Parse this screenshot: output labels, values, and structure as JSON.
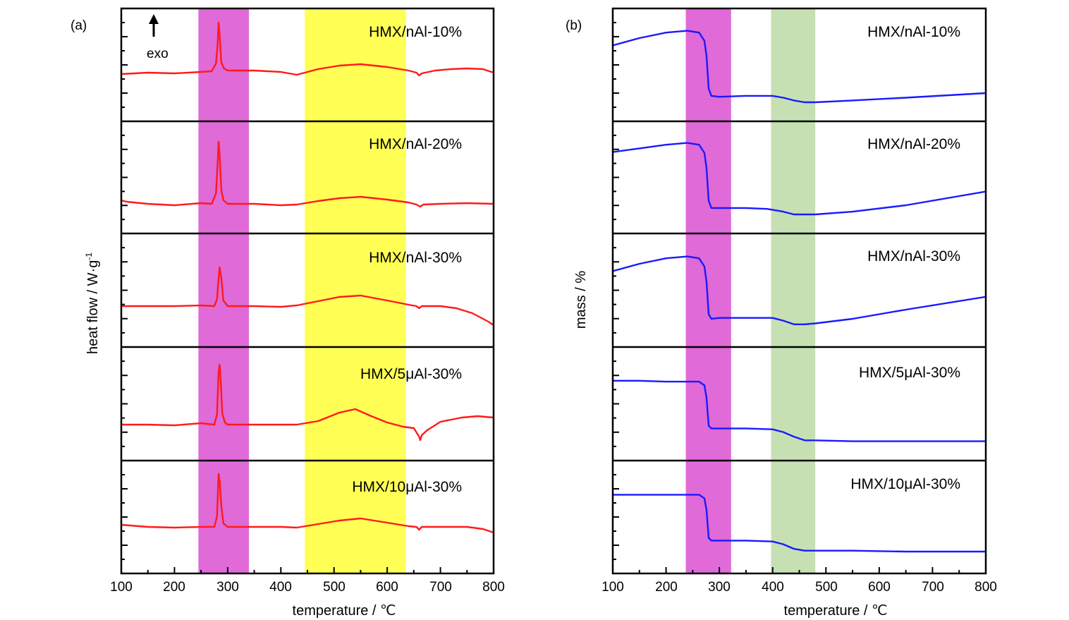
{
  "chart_data": [
    {
      "panel": "(a)",
      "type": "line",
      "stacked": true,
      "xlabel": "temperature / ℃",
      "ylabel": "heat flow / W·g",
      "ylabel_sup": "-1",
      "xlim": [
        100,
        800
      ],
      "xticks": [
        "100",
        "200",
        "300",
        "400",
        "500",
        "600",
        "700",
        "800"
      ],
      "annotation": "exo",
      "line_color": "#ff1a1a",
      "highlight_bands": [
        {
          "x": [
            245,
            340
          ],
          "color": "#e06ad8"
        },
        {
          "x": [
            445,
            635
          ],
          "color": "#ffff55"
        }
      ],
      "series": [
        {
          "name": "HMX/nAl-10%",
          "points": [
            [
              100,
              -0.05
            ],
            [
              150,
              -0.03
            ],
            [
              200,
              -0.04
            ],
            [
              250,
              -0.02
            ],
            [
              270,
              -0.01
            ],
            [
              278,
              0.1
            ],
            [
              281,
              0.35
            ],
            [
              283,
              0.68
            ],
            [
              285,
              0.5
            ],
            [
              288,
              0.12
            ],
            [
              293,
              0.03
            ],
            [
              300,
              0.0
            ],
            [
              350,
              0.0
            ],
            [
              400,
              -0.02
            ],
            [
              430,
              -0.06
            ],
            [
              470,
              0.02
            ],
            [
              510,
              0.07
            ],
            [
              550,
              0.09
            ],
            [
              600,
              0.05
            ],
            [
              640,
              0.0
            ],
            [
              655,
              -0.03
            ],
            [
              660,
              -0.07
            ],
            [
              665,
              -0.04
            ],
            [
              690,
              0.0
            ],
            [
              720,
              0.02
            ],
            [
              750,
              0.03
            ],
            [
              780,
              0.02
            ],
            [
              800,
              -0.03
            ]
          ]
        },
        {
          "name": "HMX/nAl-20%",
          "points": [
            [
              100,
              0.05
            ],
            [
              110,
              0.03
            ],
            [
              150,
              0.0
            ],
            [
              200,
              -0.02
            ],
            [
              250,
              0.01
            ],
            [
              270,
              0.0
            ],
            [
              278,
              0.15
            ],
            [
              281,
              0.55
            ],
            [
              283,
              0.88
            ],
            [
              285,
              0.7
            ],
            [
              288,
              0.2
            ],
            [
              292,
              0.05
            ],
            [
              300,
              0.0
            ],
            [
              350,
              0.0
            ],
            [
              400,
              -0.02
            ],
            [
              430,
              -0.01
            ],
            [
              470,
              0.04
            ],
            [
              510,
              0.08
            ],
            [
              550,
              0.1
            ],
            [
              600,
              0.06
            ],
            [
              640,
              0.02
            ],
            [
              655,
              -0.01
            ],
            [
              662,
              -0.04
            ],
            [
              668,
              -0.01
            ],
            [
              700,
              0.0
            ],
            [
              750,
              0.01
            ],
            [
              800,
              0.0
            ]
          ]
        },
        {
          "name": "HMX/nAl-30%",
          "points": [
            [
              100,
              0.0
            ],
            [
              150,
              0.0
            ],
            [
              200,
              0.0
            ],
            [
              250,
              0.01
            ],
            [
              275,
              0.0
            ],
            [
              280,
              0.1
            ],
            [
              283,
              0.4
            ],
            [
              285,
              0.55
            ],
            [
              288,
              0.4
            ],
            [
              292,
              0.08
            ],
            [
              300,
              0.0
            ],
            [
              350,
              0.0
            ],
            [
              400,
              -0.01
            ],
            [
              430,
              0.01
            ],
            [
              470,
              0.07
            ],
            [
              510,
              0.13
            ],
            [
              550,
              0.15
            ],
            [
              600,
              0.08
            ],
            [
              640,
              0.02
            ],
            [
              655,
              0.0
            ],
            [
              660,
              -0.03
            ],
            [
              665,
              0.0
            ],
            [
              700,
              0.0
            ],
            [
              730,
              -0.03
            ],
            [
              760,
              -0.1
            ],
            [
              790,
              -0.22
            ],
            [
              800,
              -0.27
            ]
          ]
        },
        {
          "name": "HMX/5μAl-30%",
          "points": [
            [
              100,
              0.0
            ],
            [
              150,
              0.0
            ],
            [
              200,
              -0.01
            ],
            [
              250,
              0.02
            ],
            [
              275,
              0.0
            ],
            [
              280,
              0.15
            ],
            [
              283,
              0.75
            ],
            [
              285,
              0.85
            ],
            [
              287,
              0.6
            ],
            [
              290,
              0.15
            ],
            [
              295,
              0.03
            ],
            [
              300,
              0.0
            ],
            [
              350,
              0.0
            ],
            [
              400,
              0.0
            ],
            [
              430,
              0.0
            ],
            [
              470,
              0.05
            ],
            [
              510,
              0.17
            ],
            [
              540,
              0.22
            ],
            [
              570,
              0.12
            ],
            [
              600,
              0.03
            ],
            [
              630,
              -0.03
            ],
            [
              650,
              -0.05
            ],
            [
              660,
              -0.17
            ],
            [
              662,
              -0.22
            ],
            [
              665,
              -0.15
            ],
            [
              675,
              -0.08
            ],
            [
              700,
              0.04
            ],
            [
              740,
              0.1
            ],
            [
              770,
              0.12
            ],
            [
              800,
              0.1
            ]
          ]
        },
        {
          "name": "HMX/10μAl-30%",
          "points": [
            [
              100,
              0.03
            ],
            [
              150,
              0.0
            ],
            [
              200,
              -0.01
            ],
            [
              250,
              0.0
            ],
            [
              275,
              0.0
            ],
            [
              280,
              0.15
            ],
            [
              283,
              0.75
            ],
            [
              285,
              0.65
            ],
            [
              288,
              0.3
            ],
            [
              292,
              0.05
            ],
            [
              300,
              0.0
            ],
            [
              350,
              0.0
            ],
            [
              400,
              0.0
            ],
            [
              430,
              -0.01
            ],
            [
              470,
              0.04
            ],
            [
              510,
              0.09
            ],
            [
              550,
              0.12
            ],
            [
              600,
              0.06
            ],
            [
              640,
              0.01
            ],
            [
              655,
              0.0
            ],
            [
              660,
              -0.04
            ],
            [
              665,
              0.0
            ],
            [
              700,
              0.0
            ],
            [
              750,
              0.0
            ],
            [
              780,
              -0.03
            ],
            [
              800,
              -0.08
            ]
          ]
        }
      ]
    },
    {
      "panel": "(b)",
      "type": "line",
      "stacked": true,
      "xlabel": "temperature / ℃",
      "ylabel": "mass / %",
      "xlim": [
        100,
        800
      ],
      "xticks": [
        "100",
        "200",
        "300",
        "400",
        "500",
        "600",
        "700",
        "800"
      ],
      "line_color": "#1a1aff",
      "highlight_bands": [
        {
          "x": [
            237,
            322
          ],
          "color": "#e06ad8"
        },
        {
          "x": [
            397,
            480
          ],
          "color": "#c6e0b4"
        }
      ],
      "series": [
        {
          "name": "HMX/nAl-10%",
          "points": [
            [
              100,
              0.72
            ],
            [
              150,
              0.8
            ],
            [
              200,
              0.86
            ],
            [
              240,
              0.88
            ],
            [
              262,
              0.86
            ],
            [
              272,
              0.77
            ],
            [
              276,
              0.6
            ],
            [
              280,
              0.25
            ],
            [
              285,
              0.17
            ],
            [
              300,
              0.16
            ],
            [
              350,
              0.17
            ],
            [
              400,
              0.17
            ],
            [
              420,
              0.15
            ],
            [
              440,
              0.12
            ],
            [
              460,
              0.1
            ],
            [
              480,
              0.1
            ],
            [
              550,
              0.12
            ],
            [
              650,
              0.15
            ],
            [
              800,
              0.2
            ]
          ]
        },
        {
          "name": "HMX/nAl-20%",
          "points": [
            [
              100,
              0.78
            ],
            [
              150,
              0.82
            ],
            [
              200,
              0.86
            ],
            [
              240,
              0.88
            ],
            [
              262,
              0.86
            ],
            [
              272,
              0.77
            ],
            [
              276,
              0.6
            ],
            [
              280,
              0.25
            ],
            [
              285,
              0.17
            ],
            [
              300,
              0.17
            ],
            [
              350,
              0.17
            ],
            [
              390,
              0.16
            ],
            [
              420,
              0.13
            ],
            [
              440,
              0.1
            ],
            [
              460,
              0.1
            ],
            [
              480,
              0.1
            ],
            [
              550,
              0.13
            ],
            [
              650,
              0.2
            ],
            [
              800,
              0.35
            ]
          ]
        },
        {
          "name": "HMX/nAl-30%",
          "points": [
            [
              100,
              0.72
            ],
            [
              150,
              0.8
            ],
            [
              200,
              0.86
            ],
            [
              240,
              0.88
            ],
            [
              262,
              0.86
            ],
            [
              272,
              0.77
            ],
            [
              276,
              0.6
            ],
            [
              280,
              0.25
            ],
            [
              285,
              0.2
            ],
            [
              300,
              0.21
            ],
            [
              350,
              0.21
            ],
            [
              400,
              0.21
            ],
            [
              420,
              0.18
            ],
            [
              440,
              0.14
            ],
            [
              460,
              0.14
            ],
            [
              480,
              0.15
            ],
            [
              550,
              0.2
            ],
            [
              650,
              0.3
            ],
            [
              800,
              0.44
            ]
          ]
        },
        {
          "name": "HMX/5μAl-30%",
          "points": [
            [
              100,
              0.74
            ],
            [
              150,
              0.74
            ],
            [
              200,
              0.73
            ],
            [
              240,
              0.73
            ],
            [
              262,
              0.73
            ],
            [
              272,
              0.69
            ],
            [
              276,
              0.55
            ],
            [
              280,
              0.25
            ],
            [
              285,
              0.22
            ],
            [
              300,
              0.22
            ],
            [
              350,
              0.22
            ],
            [
              400,
              0.21
            ],
            [
              420,
              0.18
            ],
            [
              440,
              0.13
            ],
            [
              460,
              0.09
            ],
            [
              480,
              0.09
            ],
            [
              550,
              0.08
            ],
            [
              650,
              0.08
            ],
            [
              800,
              0.08
            ]
          ]
        },
        {
          "name": "HMX/10μAl-30%",
          "points": [
            [
              100,
              0.72
            ],
            [
              150,
              0.72
            ],
            [
              200,
              0.72
            ],
            [
              240,
              0.72
            ],
            [
              262,
              0.72
            ],
            [
              272,
              0.68
            ],
            [
              276,
              0.55
            ],
            [
              280,
              0.25
            ],
            [
              285,
              0.22
            ],
            [
              300,
              0.22
            ],
            [
              350,
              0.22
            ],
            [
              400,
              0.21
            ],
            [
              420,
              0.18
            ],
            [
              440,
              0.13
            ],
            [
              460,
              0.11
            ],
            [
              480,
              0.11
            ],
            [
              550,
              0.11
            ],
            [
              650,
              0.1
            ],
            [
              800,
              0.1
            ]
          ]
        }
      ]
    }
  ]
}
